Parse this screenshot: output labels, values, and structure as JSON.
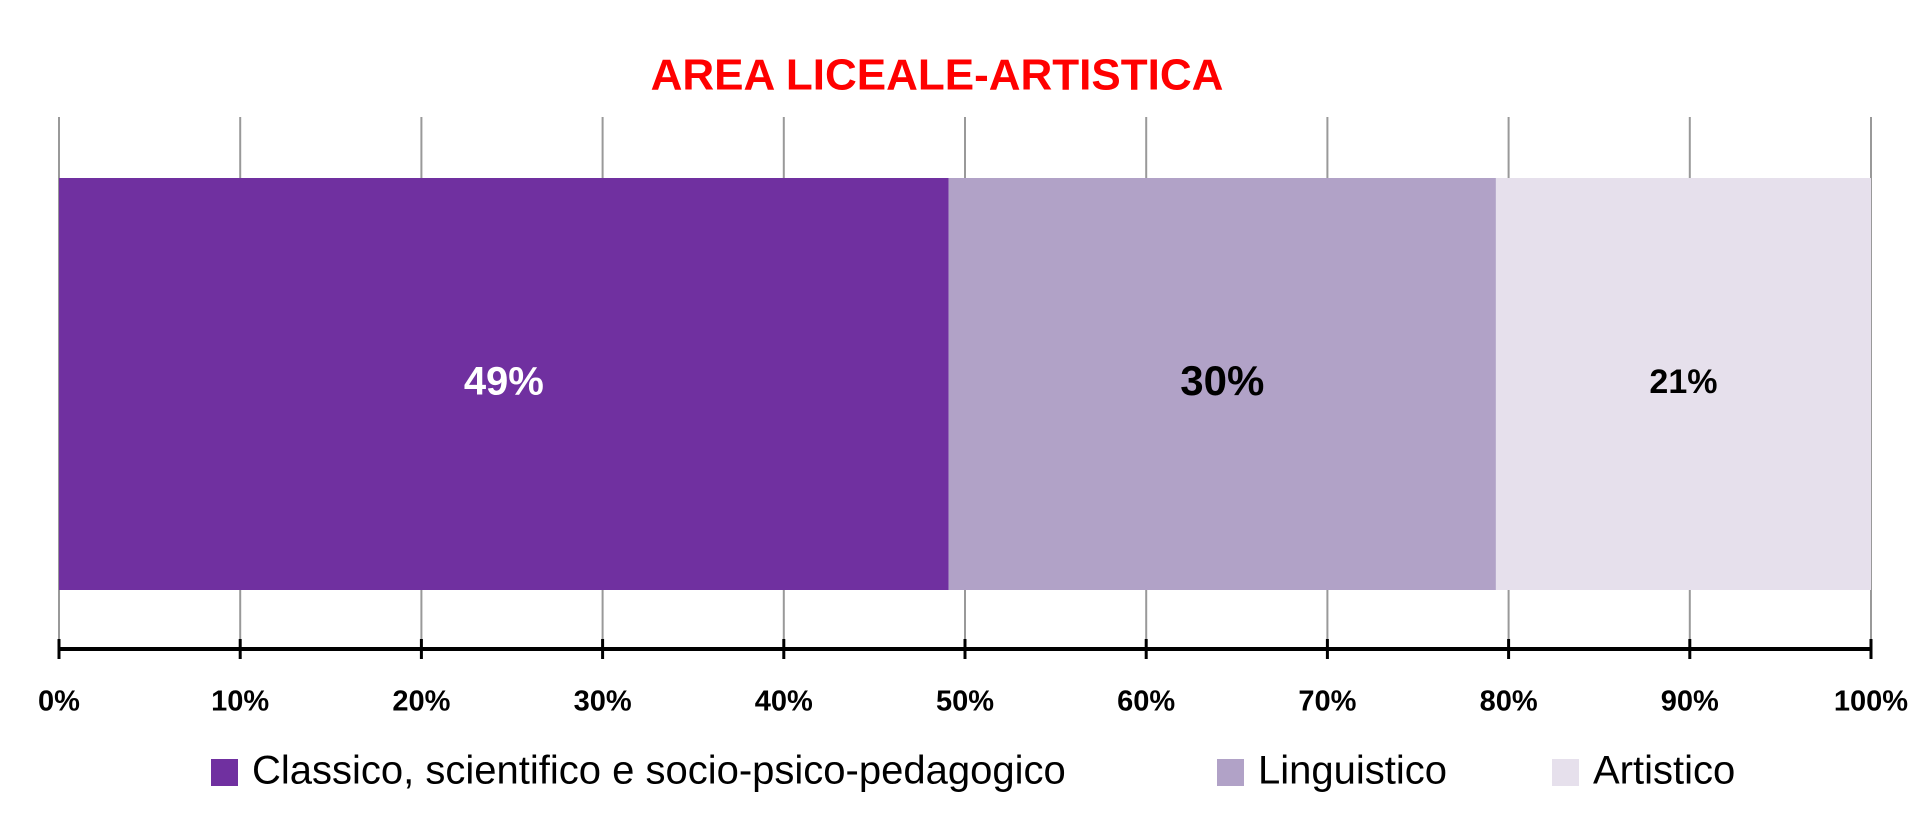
{
  "chart_data": {
    "type": "bar",
    "orientation": "horizontal",
    "stacked": true,
    "title": "AREA LICEALE-ARTISTICA",
    "title_color": "#ff0000",
    "categories": [
      null
    ],
    "series": [
      {
        "name": "Classico, scientifico e socio-psico-pedagogico",
        "color": "#7030a0",
        "label_color": "#ffffff",
        "values": [
          49.1
        ],
        "value_labels": [
          "49%"
        ]
      },
      {
        "name": "Linguistico",
        "color": "#b1a2c7",
        "label_color": "#000000",
        "values": [
          30.2
        ],
        "value_labels": [
          "30%"
        ]
      },
      {
        "name": "Artistico",
        "color": "#e6e0ec",
        "label_color": "#000000",
        "values": [
          20.7
        ],
        "value_labels": [
          "21%"
        ]
      }
    ],
    "xlim": [
      0,
      100
    ],
    "xticks": [
      {
        "value": 0,
        "label": "0%"
      },
      {
        "value": 10,
        "label": "10%"
      },
      {
        "value": 20,
        "label": "20%"
      },
      {
        "value": 30,
        "label": "30%"
      },
      {
        "value": 40,
        "label": "40%"
      },
      {
        "value": 50,
        "label": "50%"
      },
      {
        "value": 60,
        "label": "60%"
      },
      {
        "value": 70,
        "label": "70%"
      },
      {
        "value": 80,
        "label": "80%"
      },
      {
        "value": 90,
        "label": "90%"
      },
      {
        "value": 100,
        "label": "100%"
      }
    ],
    "grid": true,
    "legend": "bottom"
  }
}
